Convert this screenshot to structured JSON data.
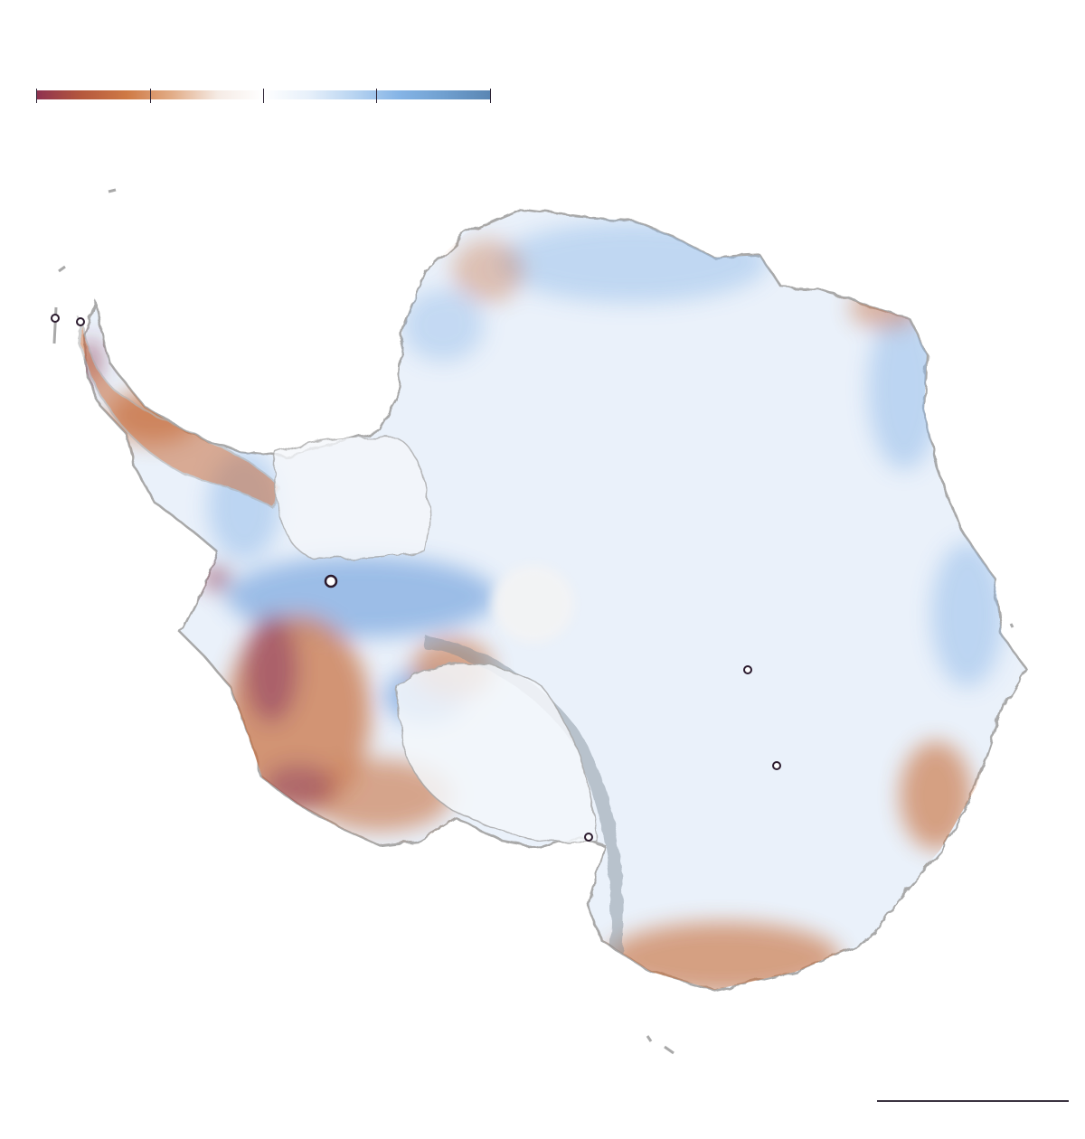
{
  "legend": {
    "name": "elevation-change-color-scale",
    "colors": [
      "#8e3150",
      "#b5583d",
      "#cf7a45",
      "#e2ad88",
      "#f5ebe5",
      "#ffffff",
      "#e7f0fa",
      "#b8d4f1",
      "#85b4e6",
      "#6f9fcf",
      "#5a86b3"
    ],
    "tick_count": 5
  },
  "map": {
    "subject": "Antarctica",
    "colors": {
      "interior": "#eaf1fa",
      "gain": "#8fb9ea",
      "loss": "#c8703f",
      "strong_loss": "#8b2f4b",
      "coastline": "#a9a9a9",
      "pole_hole": "#f2f3f4",
      "marker_stroke": "#2b1b2e"
    },
    "markers": [
      {
        "name": "station-marker",
        "size": "small"
      },
      {
        "name": "station-marker",
        "size": "small"
      },
      {
        "name": "station-marker",
        "size": "large"
      },
      {
        "name": "station-marker",
        "size": "small"
      },
      {
        "name": "station-marker",
        "size": "small"
      },
      {
        "name": "station-marker",
        "size": "small"
      }
    ]
  },
  "scale_bar": {
    "color": "#3a3340"
  }
}
